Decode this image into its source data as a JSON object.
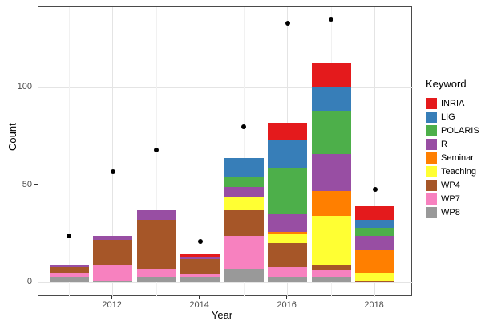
{
  "chart_data": {
    "type": "bar",
    "stacked": true,
    "title": "",
    "xlabel": "Year",
    "ylabel": "Count",
    "legend_title": "Keyword",
    "legend_position": "right",
    "grid": true,
    "point_color": "#000000",
    "years": [
      2011,
      2012,
      2013,
      2014,
      2015,
      2016,
      2017,
      2018
    ],
    "x_major_ticks": [
      2012,
      2014,
      2016,
      2018
    ],
    "x_minor_ticks": [
      2011,
      2013,
      2015,
      2017
    ],
    "y_major_ticks": [
      0,
      50,
      100
    ],
    "y_minor_ticks": [
      25,
      75,
      125
    ],
    "ylim": [
      0,
      141
    ],
    "series": [
      {
        "name": "INRIA",
        "color": "#E41A1C",
        "values": [
          0,
          0,
          0,
          2,
          0,
          9,
          13,
          7
        ]
      },
      {
        "name": "LIG",
        "color": "#377EB8",
        "values": [
          0,
          0,
          0,
          0,
          10,
          14,
          12,
          4
        ]
      },
      {
        "name": "POLARIS",
        "color": "#4DAF4A",
        "values": [
          0,
          0,
          0,
          0,
          5,
          24,
          22,
          4
        ]
      },
      {
        "name": "R",
        "color": "#984EA3",
        "values": [
          1,
          2,
          5,
          1,
          5,
          9,
          19,
          7
        ]
      },
      {
        "name": "Seminar",
        "color": "#FF7F00",
        "values": [
          0,
          0,
          0,
          0,
          0,
          1,
          13,
          12
        ]
      },
      {
        "name": "Teaching",
        "color": "#FFFF33",
        "values": [
          0,
          0,
          0,
          0,
          7,
          5,
          25,
          4
        ]
      },
      {
        "name": "WP4",
        "color": "#A65628",
        "values": [
          3,
          13,
          25,
          8,
          13,
          12,
          3,
          1
        ]
      },
      {
        "name": "WP7",
        "color": "#F781BF",
        "values": [
          2,
          8,
          4,
          1,
          17,
          5,
          3,
          0
        ]
      },
      {
        "name": "WP8",
        "color": "#999999",
        "values": [
          3,
          1,
          3,
          3,
          7,
          3,
          3,
          0
        ]
      }
    ],
    "bar_totals": [
      9,
      24,
      37,
      15,
      64,
      82,
      113,
      39
    ],
    "points": [
      {
        "year": 2011,
        "count": 24
      },
      {
        "year": 2012,
        "count": 57
      },
      {
        "year": 2013,
        "count": 68
      },
      {
        "year": 2014,
        "count": 21
      },
      {
        "year": 2015,
        "count": 80
      },
      {
        "year": 2016,
        "count": 133
      },
      {
        "year": 2017,
        "count": 135
      },
      {
        "year": 2018,
        "count": 48
      }
    ]
  }
}
